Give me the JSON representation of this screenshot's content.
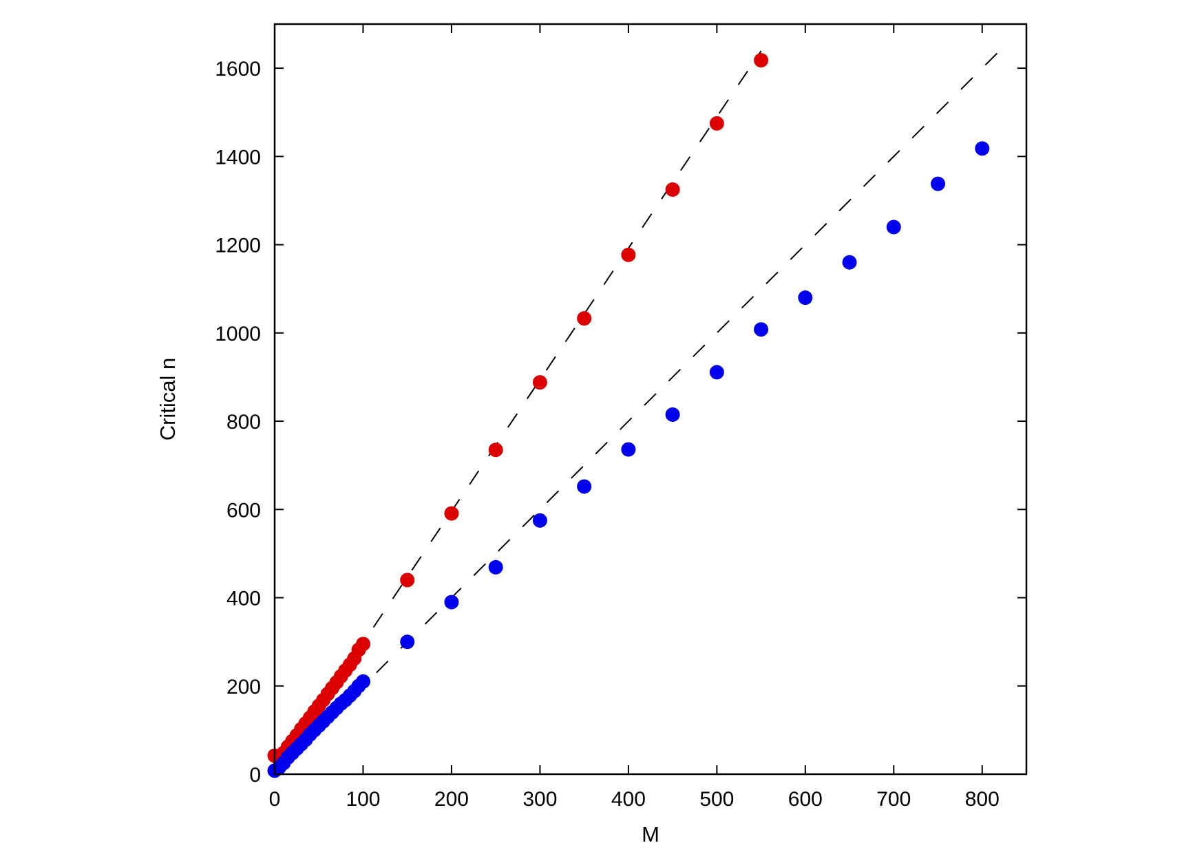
{
  "chart_data": {
    "type": "scatter",
    "title": "",
    "xlabel": "M",
    "ylabel": "Critical n",
    "xlim": [
      0,
      850
    ],
    "ylim": [
      0,
      1700
    ],
    "xticks": [
      0,
      100,
      200,
      300,
      400,
      500,
      600,
      700,
      800
    ],
    "yticks": [
      0,
      200,
      400,
      600,
      800,
      1000,
      1200,
      1400,
      1600
    ],
    "grid": false,
    "legend": null,
    "colors": {
      "red": "#dd0000",
      "blue": "#0000ee",
      "fit": "#000000"
    },
    "series": [
      {
        "color": "red",
        "points": [
          [
            0,
            42
          ],
          [
            5,
            35
          ],
          [
            10,
            48
          ],
          [
            15,
            62
          ],
          [
            20,
            75
          ],
          [
            25,
            88
          ],
          [
            30,
            102
          ],
          [
            35,
            115
          ],
          [
            40,
            128
          ],
          [
            45,
            142
          ],
          [
            50,
            155
          ],
          [
            55,
            168
          ],
          [
            60,
            182
          ],
          [
            65,
            195
          ],
          [
            70,
            208
          ],
          [
            75,
            222
          ],
          [
            80,
            235
          ],
          [
            85,
            248
          ],
          [
            90,
            262
          ],
          [
            95,
            282
          ],
          [
            100,
            295
          ],
          [
            150,
            440
          ],
          [
            200,
            591
          ],
          [
            250,
            735
          ],
          [
            300,
            888
          ],
          [
            350,
            1033
          ],
          [
            400,
            1177
          ],
          [
            450,
            1325
          ],
          [
            500,
            1475
          ],
          [
            550,
            1618
          ]
        ],
        "fit_line": {
          "slope": 2.98,
          "intercept": 0,
          "x_range": [
            90,
            550
          ]
        }
      },
      {
        "color": "blue",
        "points": [
          [
            0,
            8
          ],
          [
            5,
            15
          ],
          [
            10,
            25
          ],
          [
            15,
            38
          ],
          [
            20,
            48
          ],
          [
            25,
            58
          ],
          [
            30,
            68
          ],
          [
            35,
            78
          ],
          [
            40,
            90
          ],
          [
            45,
            100
          ],
          [
            50,
            110
          ],
          [
            55,
            120
          ],
          [
            60,
            130
          ],
          [
            65,
            140
          ],
          [
            70,
            150
          ],
          [
            75,
            160
          ],
          [
            80,
            168
          ],
          [
            85,
            178
          ],
          [
            90,
            188
          ],
          [
            95,
            200
          ],
          [
            100,
            210
          ],
          [
            150,
            300
          ],
          [
            200,
            390
          ],
          [
            250,
            469
          ],
          [
            300,
            575
          ],
          [
            350,
            652
          ],
          [
            400,
            736
          ],
          [
            450,
            815
          ],
          [
            500,
            911
          ],
          [
            550,
            1008
          ],
          [
            600,
            1080
          ],
          [
            650,
            1160
          ],
          [
            700,
            1240
          ],
          [
            750,
            1338
          ],
          [
            800,
            1418
          ]
        ],
        "fit_line": {
          "slope": 2.0,
          "intercept": 0,
          "x_range": [
            115,
            825
          ]
        }
      }
    ]
  }
}
